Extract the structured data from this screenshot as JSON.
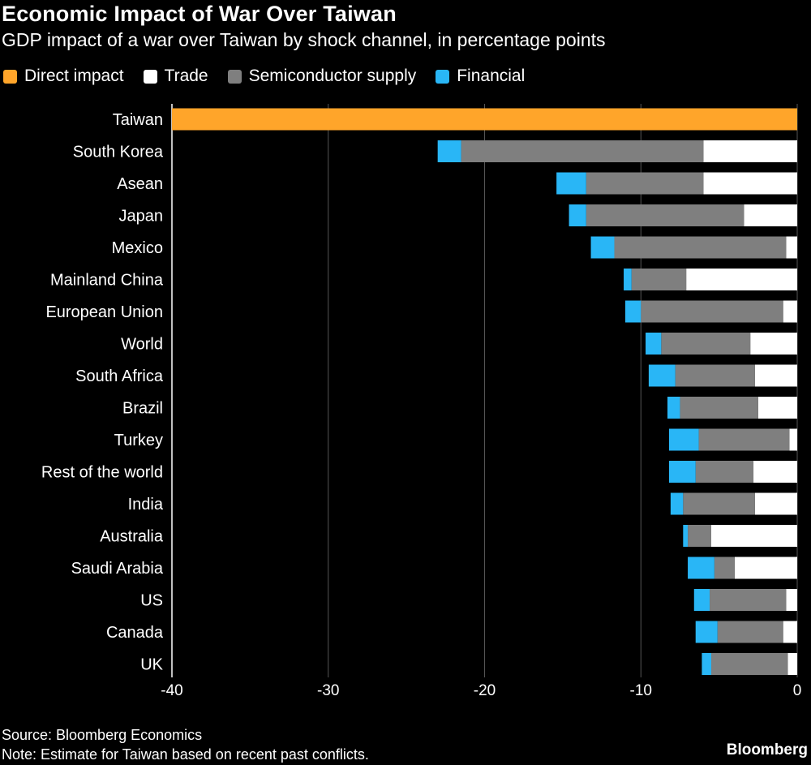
{
  "header": {
    "title": "Economic Impact of War Over Taiwan",
    "subtitle": "GDP impact of a war over Taiwan by shock channel, in percentage points"
  },
  "legend": [
    {
      "label": "Direct impact",
      "color": "#ffa52a"
    },
    {
      "label": "Trade",
      "color": "#ffffff"
    },
    {
      "label": "Semiconductor supply",
      "color": "#7f7f7f"
    },
    {
      "label": "Financial",
      "color": "#29b6f6"
    }
  ],
  "footer": {
    "source": "Source: Bloomberg Economics",
    "note": "Note: Estimate for Taiwan based on recent past conflicts.",
    "brand": "Bloomberg"
  },
  "chart_data": {
    "type": "bar",
    "orientation": "horizontal",
    "stacked": true,
    "title": "Economic Impact of War Over Taiwan",
    "subtitle": "GDP impact of a war over Taiwan by shock channel, in percentage points",
    "xlim": [
      -40,
      0
    ],
    "xticks": [
      -40,
      -30,
      -20,
      -10,
      0
    ],
    "grid": true,
    "categories": [
      "Taiwan",
      "South Korea",
      "Asean",
      "Japan",
      "Mexico",
      "Mainland China",
      "European Union",
      "World",
      "South Africa",
      "Brazil",
      "Turkey",
      "Rest of the world",
      "India",
      "Australia",
      "Saudi Arabia",
      "US",
      "Canada",
      "UK"
    ],
    "series": [
      {
        "name": "Direct impact",
        "color": "#ffa52a",
        "values": [
          -40,
          0,
          0,
          0,
          0,
          0,
          0,
          0,
          0,
          0,
          0,
          0,
          0,
          0,
          0,
          0,
          0,
          0
        ]
      },
      {
        "name": "Trade",
        "color": "#ffffff",
        "values": [
          0,
          -6.0,
          -6.0,
          -3.4,
          -0.7,
          -7.1,
          -0.9,
          -3.0,
          -2.7,
          -2.5,
          -0.5,
          -2.8,
          -2.7,
          -5.5,
          -4.0,
          -0.7,
          -0.9,
          -0.6
        ]
      },
      {
        "name": "Semiconductor supply",
        "color": "#7f7f7f",
        "values": [
          0,
          -15.5,
          -7.5,
          -10.1,
          -11.0,
          -3.5,
          -9.1,
          -5.7,
          -5.1,
          -5.0,
          -5.8,
          -3.7,
          -4.6,
          -1.5,
          -1.3,
          -4.9,
          -4.2,
          -4.9
        ]
      },
      {
        "name": "Financial",
        "color": "#29b6f6",
        "values": [
          0,
          -1.5,
          -1.9,
          -1.1,
          -1.5,
          -0.5,
          -1.0,
          -1.0,
          -1.7,
          -0.8,
          -1.9,
          -1.7,
          -0.8,
          -0.3,
          -1.7,
          -1.0,
          -1.4,
          -0.6
        ]
      }
    ]
  }
}
